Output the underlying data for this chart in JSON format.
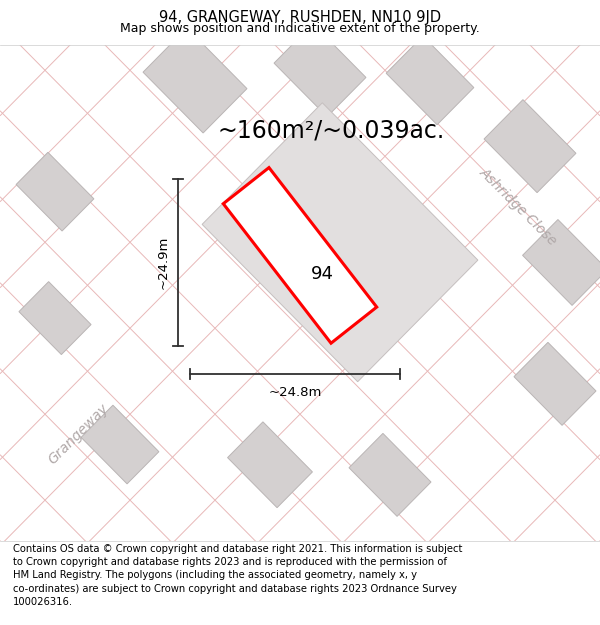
{
  "title_line1": "94, GRANGEWAY, RUSHDEN, NN10 9JD",
  "title_line2": "Map shows position and indicative extent of the property.",
  "area_text": "~160m²/~0.039ac.",
  "label_94": "94",
  "dim_height": "~24.9m",
  "dim_width": "~24.8m",
  "street_label_grangeway": "Grangeway",
  "street_label_ashridge": "Ashridge Close",
  "footer_text": "Contains OS data © Crown copyright and database right 2021. This information is subject\nto Crown copyright and database rights 2023 and is reproduced with the permission of\nHM Land Registry. The polygons (including the associated geometry, namely x, y\nco-ordinates) are subject to Crown copyright and database rights 2023 Ordnance Survey\n100026316.",
  "bg_color": "#f5f5f5",
  "map_bg": "#eeecec",
  "plot_fill": "#e8e6e6",
  "plot_edge_color": "red",
  "road_line_color": "#e8b8b8",
  "building_fill": "#d4d0d0",
  "building_edge": "#bab5b5",
  "dim_line_color": "#303030",
  "text_color": "#000000",
  "street_text_color": "#b0a8a8",
  "title_fontsize": 10.5,
  "subtitle_fontsize": 9,
  "area_fontsize": 17,
  "label_fontsize": 13,
  "dim_fontsize": 9.5,
  "street_fontsize": 10,
  "footer_fontsize": 7.2
}
